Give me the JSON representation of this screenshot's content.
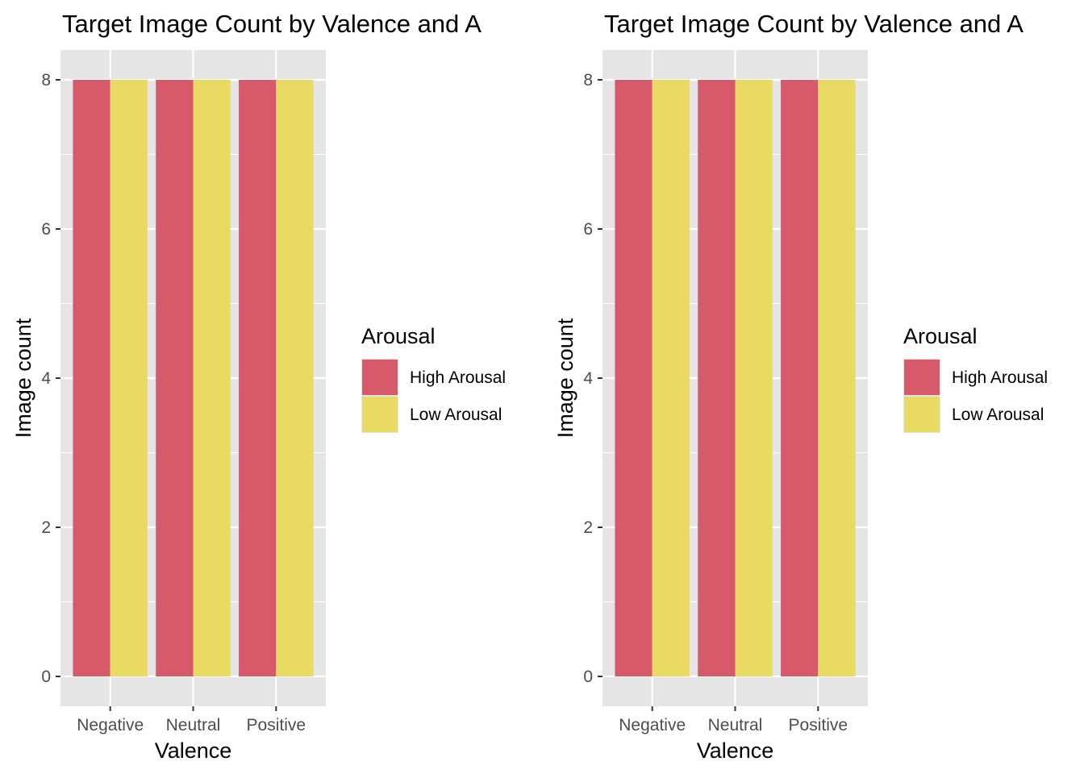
{
  "chart_data": [
    {
      "type": "bar",
      "title": "Target Image Count by Valence and A",
      "xlabel": "Valence",
      "ylabel": "Image count",
      "categories": [
        "Negative",
        "Neutral",
        "Positive"
      ],
      "series": [
        {
          "name": "High Arousal",
          "values": [
            8,
            8,
            8
          ]
        },
        {
          "name": "Low Arousal",
          "values": [
            8,
            8,
            8
          ]
        }
      ],
      "yticks": [
        "0",
        "2",
        "4",
        "6",
        "8"
      ],
      "ylim": [
        -0.4,
        8.4
      ],
      "grid": true,
      "legend": {
        "title": "Arousal",
        "position": "right"
      }
    },
    {
      "type": "bar",
      "title": "Target Image Count by Valence and A",
      "xlabel": "Valence",
      "ylabel": "Image count",
      "categories": [
        "Negative",
        "Neutral",
        "Positive"
      ],
      "series": [
        {
          "name": "High Arousal",
          "values": [
            8,
            8,
            8
          ]
        },
        {
          "name": "Low Arousal",
          "values": [
            8,
            8,
            8
          ]
        }
      ],
      "yticks": [
        "0",
        "2",
        "4",
        "6",
        "8"
      ],
      "ylim": [
        -0.4,
        8.4
      ],
      "grid": true,
      "legend": {
        "title": "Arousal",
        "position": "right"
      }
    }
  ],
  "colors": {
    "panel_bg": "#e5e5e5",
    "grid": "#ffffff",
    "high_arousal": "#d65a69",
    "low_arousal": "#e9da63",
    "tick": "#333333"
  }
}
